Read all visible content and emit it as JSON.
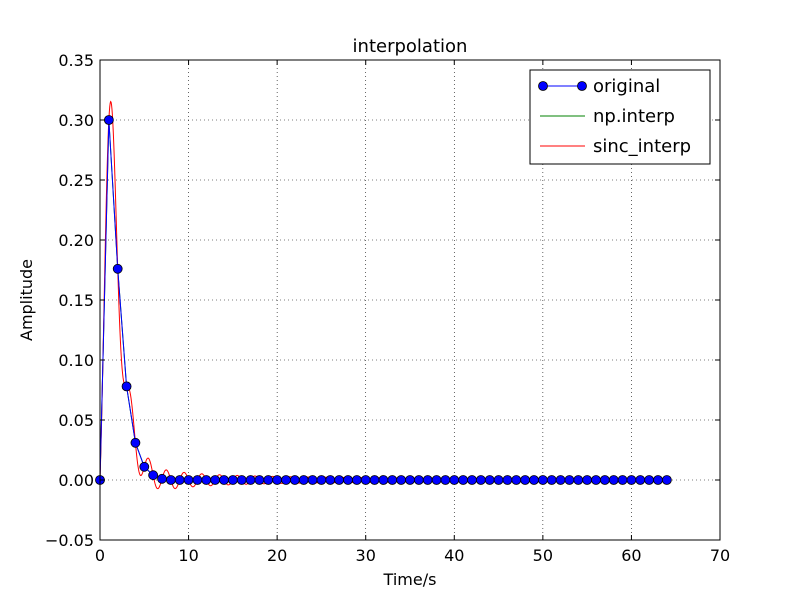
{
  "chart_data": {
    "type": "line",
    "title": "interpolation",
    "xlabel": "Time/s",
    "ylabel": "Amplitude",
    "xlim": [
      0,
      70
    ],
    "ylim": [
      -0.05,
      0.35
    ],
    "grid": true,
    "legend_position": "top-right",
    "x_ticks": [
      "0",
      "10",
      "20",
      "30",
      "40",
      "50",
      "60",
      "70"
    ],
    "y_ticks": [
      "−0.05",
      "0.00",
      "0.05",
      "0.10",
      "0.15",
      "0.20",
      "0.25",
      "0.30",
      "0.35"
    ],
    "series": [
      {
        "name": "original",
        "color": "#0000ff",
        "style": "line-with-markers",
        "x": [
          0,
          1,
          2,
          3,
          4,
          5,
          6,
          7,
          8,
          9,
          10,
          11,
          12,
          13,
          14,
          15,
          16,
          17,
          18,
          19,
          20,
          21,
          22,
          23,
          24,
          25,
          26,
          27,
          28,
          29,
          30,
          31,
          32,
          33,
          34,
          35,
          36,
          37,
          38,
          39,
          40,
          41,
          42,
          43,
          44,
          45,
          46,
          47,
          48,
          49,
          50,
          51,
          52,
          53,
          54,
          55,
          56,
          57,
          58,
          59,
          60,
          61,
          62,
          63,
          64
        ],
        "y": [
          0.0,
          0.3,
          0.176,
          0.078,
          0.031,
          0.011,
          0.004,
          0.001,
          0,
          0,
          0,
          0,
          0,
          0,
          0,
          0,
          0,
          0,
          0,
          0,
          0,
          0,
          0,
          0,
          0,
          0,
          0,
          0,
          0,
          0,
          0,
          0,
          0,
          0,
          0,
          0,
          0,
          0,
          0,
          0,
          0,
          0,
          0,
          0,
          0,
          0,
          0,
          0,
          0,
          0,
          0,
          0,
          0,
          0,
          0,
          0,
          0,
          0,
          0,
          0,
          0,
          0,
          0,
          0,
          0
        ]
      },
      {
        "name": "np.interp",
        "color": "#008000",
        "style": "line"
      },
      {
        "name": "sinc_interp",
        "color": "#ff0000",
        "style": "line"
      }
    ]
  }
}
